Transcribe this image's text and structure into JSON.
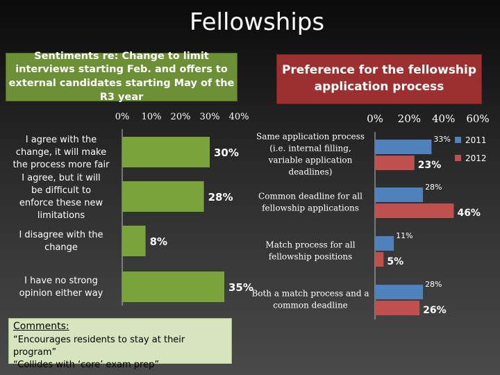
{
  "slide": {
    "title": "Fellowships"
  },
  "chart_data": [
    {
      "type": "bar",
      "orientation": "horizontal",
      "title": "Sentiments re: Change to limit interviews starting Feb. and offers to external candidates starting May of the R3 year",
      "categories": [
        "I agree with the change, it will make the process more fair",
        "I agree, but it will be difficult to enforce these new limitations",
        "I disagree with the change",
        "I have no strong opinion either way"
      ],
      "values": [
        30,
        28,
        8,
        35
      ],
      "data_labels": [
        "30%",
        "28%",
        "8%",
        "35%"
      ],
      "x_ticks": [
        "0%",
        "10%",
        "20%",
        "30%",
        "40%"
      ],
      "xlim": [
        0,
        40
      ],
      "color": "#7aa33c",
      "grid": false
    },
    {
      "type": "bar",
      "orientation": "horizontal",
      "title": "Preference for the fellowship application process",
      "categories": [
        "Same application process (i.e. internal filling, variable application deadlines)",
        "Common deadline for all fellowship applications",
        "Match process for all fellowship positions",
        "Both a match process and a common deadline"
      ],
      "series": [
        {
          "name": "2011",
          "values": [
            33,
            28,
            11,
            28
          ],
          "labels": [
            "33%",
            "28%",
            "11%",
            "28%"
          ],
          "color": "#4f81bd"
        },
        {
          "name": "2012",
          "values": [
            23,
            46,
            5,
            26
          ],
          "labels": [
            "23%",
            "46%",
            "5%",
            "26%"
          ],
          "color": "#c0504d"
        }
      ],
      "x_ticks": [
        "0%",
        "20%",
        "40%",
        "60%"
      ],
      "xlim": [
        0,
        60
      ],
      "legend": "top-right",
      "grid": false
    }
  ],
  "comments": {
    "heading": "Comments:",
    "lines": [
      "“Encourages residents to stay at their program”",
      "“Collides with ‘core’ exam prep”"
    ]
  }
}
